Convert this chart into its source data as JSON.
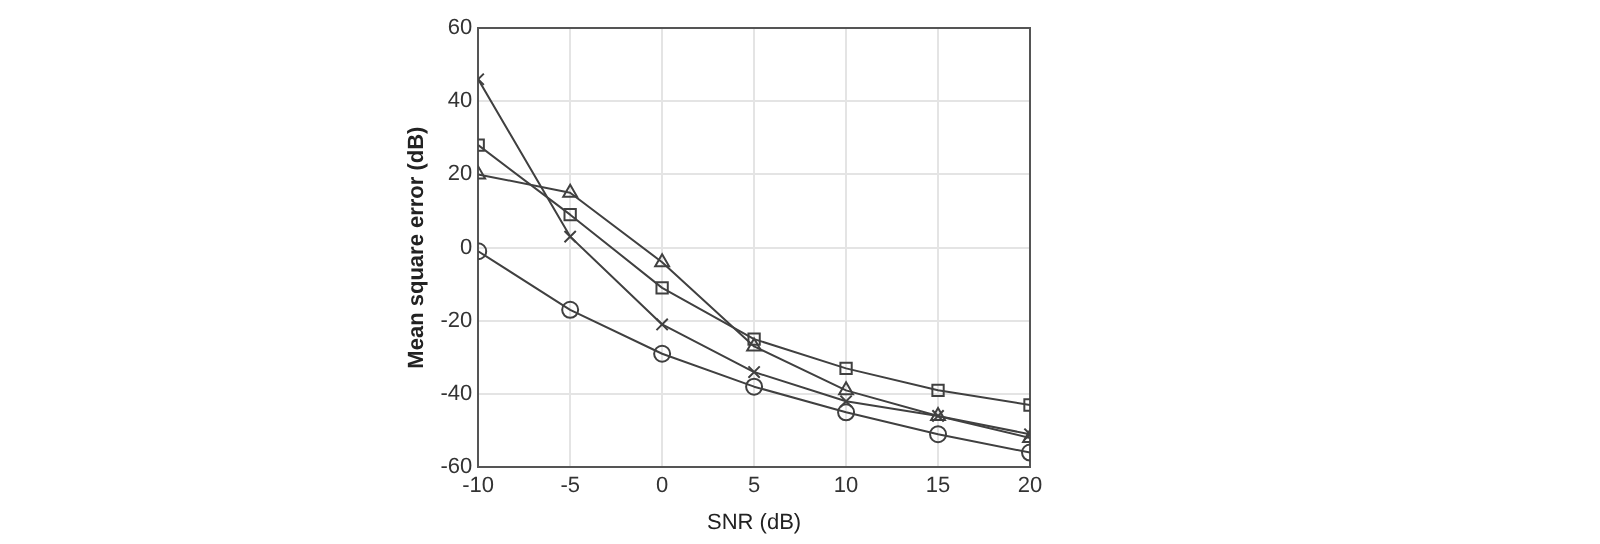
{
  "chart_data": {
    "type": "line",
    "xlabel": "SNR (dB)",
    "ylabel": "Mean square error (dB)",
    "x": [
      -10,
      -5,
      0,
      5,
      10,
      15,
      20
    ],
    "series": [
      {
        "color": "#404040",
        "marker": "cross",
        "values": [
          46,
          3,
          -21,
          -34,
          -42,
          -46,
          -51
        ]
      },
      {
        "color": "#404040",
        "marker": "square",
        "values": [
          28,
          9,
          -11,
          -25,
          -33,
          -39,
          -43
        ]
      },
      {
        "color": "#404040",
        "marker": "triangle",
        "values": [
          20,
          15,
          -4,
          -27,
          -39,
          -46,
          -52
        ]
      },
      {
        "color": "#404040",
        "marker": "circle",
        "values": [
          -1,
          -17,
          -29,
          -38,
          -45,
          -51,
          -56
        ]
      }
    ],
    "xlim": [
      -10,
      20
    ],
    "xticks": [
      -10,
      -5,
      0,
      5,
      10,
      15,
      20
    ],
    "ylim": [
      -60,
      60
    ],
    "yticks": [
      -60,
      -40,
      -20,
      0,
      20,
      40,
      60
    ],
    "grid": true,
    "legend": false,
    "line_style": "solid"
  }
}
